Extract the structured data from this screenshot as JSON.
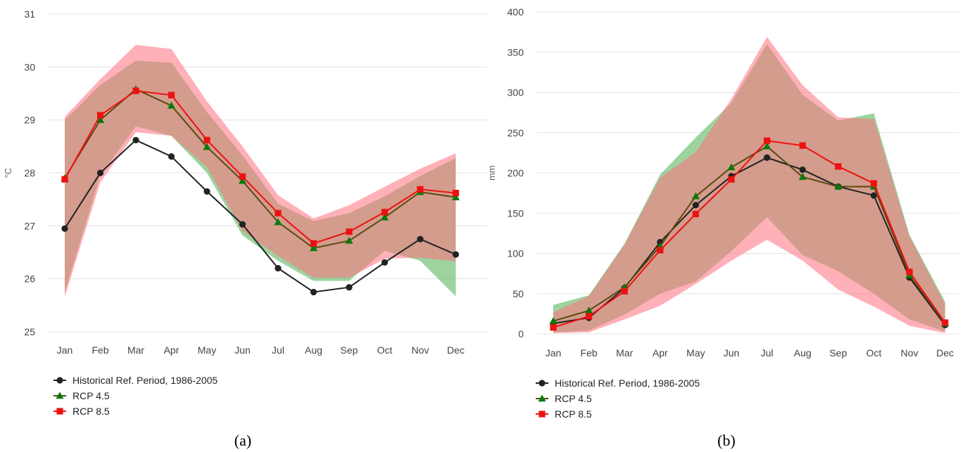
{
  "chart_data": [
    {
      "type": "line",
      "panel": "a",
      "caption": "(a)",
      "ylabel": "°C",
      "xlabel": "",
      "ylim": [
        25,
        31
      ],
      "yticks": [
        25,
        26,
        27,
        28,
        29,
        30,
        31
      ],
      "grid": true,
      "categories": [
        "Jan",
        "Feb",
        "Mar",
        "Apr",
        "May",
        "Jun",
        "Jul",
        "Aug",
        "Sep",
        "Oct",
        "Nov",
        "Dec"
      ],
      "series": [
        {
          "name": "Historical Ref. Period, 1986-2005",
          "color": "#222222",
          "marker": "circle",
          "values": [
            26.95,
            28.0,
            28.62,
            28.31,
            27.65,
            27.03,
            26.2,
            25.75,
            25.84,
            26.31,
            26.75,
            26.46
          ]
        },
        {
          "name": "RCP 4.5",
          "color": "#0a7a0a",
          "line_color": "#5a4a10",
          "marker": "triangle",
          "values": [
            27.9,
            29.0,
            29.58,
            29.27,
            28.49,
            27.85,
            27.07,
            26.58,
            26.72,
            27.16,
            27.64,
            27.54
          ]
        },
        {
          "name": "RCP 8.5",
          "color": "#ee1111",
          "marker": "square",
          "values": [
            27.88,
            29.09,
            29.55,
            29.47,
            28.62,
            27.93,
            27.24,
            26.67,
            26.89,
            27.26,
            27.69,
            27.62
          ]
        }
      ],
      "bands": [
        {
          "series": "RCP 4.5",
          "color": "#4caf50",
          "upper": [
            29.0,
            29.66,
            30.12,
            30.08,
            29.15,
            28.33,
            27.42,
            27.09,
            27.24,
            27.56,
            27.94,
            28.28
          ],
          "lower": [
            25.75,
            27.95,
            28.88,
            28.7,
            28.0,
            26.82,
            26.34,
            25.96,
            25.96,
            26.53,
            26.34,
            25.67
          ]
        },
        {
          "series": "RCP 8.5",
          "color": "#ff6f7d",
          "upper": [
            29.06,
            29.77,
            30.42,
            30.34,
            29.35,
            28.5,
            27.58,
            27.14,
            27.39,
            27.74,
            28.08,
            28.37
          ],
          "lower": [
            25.66,
            27.82,
            28.77,
            28.7,
            28.11,
            26.9,
            26.43,
            26.02,
            26.02,
            26.38,
            26.4,
            26.33
          ]
        }
      ],
      "legend_position": "bottom",
      "legend": [
        {
          "label": "Historical Ref. Period, 1986-2005",
          "series": "Historical Ref. Period, 1986-2005"
        },
        {
          "label": "RCP 4.5",
          "series": "RCP 4.5"
        },
        {
          "label": "RCP 8.5",
          "series": "RCP 8.5"
        }
      ]
    },
    {
      "type": "line",
      "panel": "b",
      "caption": "(b)",
      "ylabel": "mm",
      "xlabel": "",
      "ylim": [
        0,
        400
      ],
      "yticks": [
        0,
        50,
        100,
        150,
        200,
        250,
        300,
        350,
        400
      ],
      "grid": true,
      "categories": [
        "Jan",
        "Feb",
        "Mar",
        "Apr",
        "May",
        "Jun",
        "Jul",
        "Aug",
        "Sep",
        "Oct",
        "Nov",
        "Dec"
      ],
      "series": [
        {
          "name": "Historical Ref. Period, 1986-2005",
          "color": "#222222",
          "marker": "circle",
          "values": [
            13,
            20,
            57,
            114,
            160,
            196,
            219,
            204,
            183,
            172,
            70,
            11
          ]
        },
        {
          "name": "RCP 4.5",
          "color": "#0a7a0a",
          "line_color": "#5a4a10",
          "marker": "triangle",
          "values": [
            16,
            29,
            58,
            109,
            171,
            207,
            233,
            195,
            183,
            183,
            73,
            13
          ]
        },
        {
          "name": "RCP 8.5",
          "color": "#ee1111",
          "marker": "square",
          "values": [
            8,
            22,
            53,
            104,
            149,
            192,
            240,
            234,
            208,
            187,
            77,
            14
          ]
        }
      ],
      "bands": [
        {
          "series": "RCP 4.5",
          "color": "#4caf50",
          "upper": [
            36,
            48,
            112,
            198,
            244,
            287,
            360,
            297,
            265,
            274,
            123,
            40
          ],
          "lower": [
            2,
            4,
            24,
            50,
            65,
            103,
            145,
            98,
            78,
            50,
            18,
            3
          ]
        },
        {
          "series": "RCP 8.5",
          "color": "#ff6f7d",
          "upper": [
            27,
            47,
            111,
            194,
            226,
            292,
            369,
            309,
            269,
            267,
            121,
            37
          ],
          "lower": [
            1,
            2,
            18,
            35,
            62,
            91,
            117,
            91,
            55,
            34,
            10,
            1
          ]
        }
      ],
      "legend_position": "bottom",
      "legend": [
        {
          "label": "Historical Ref. Period, 1986-2005",
          "series": "Historical Ref. Period, 1986-2005"
        },
        {
          "label": "RCP 4.5",
          "series": "RCP 4.5"
        },
        {
          "label": "RCP 8.5",
          "series": "RCP 8.5"
        }
      ]
    }
  ]
}
